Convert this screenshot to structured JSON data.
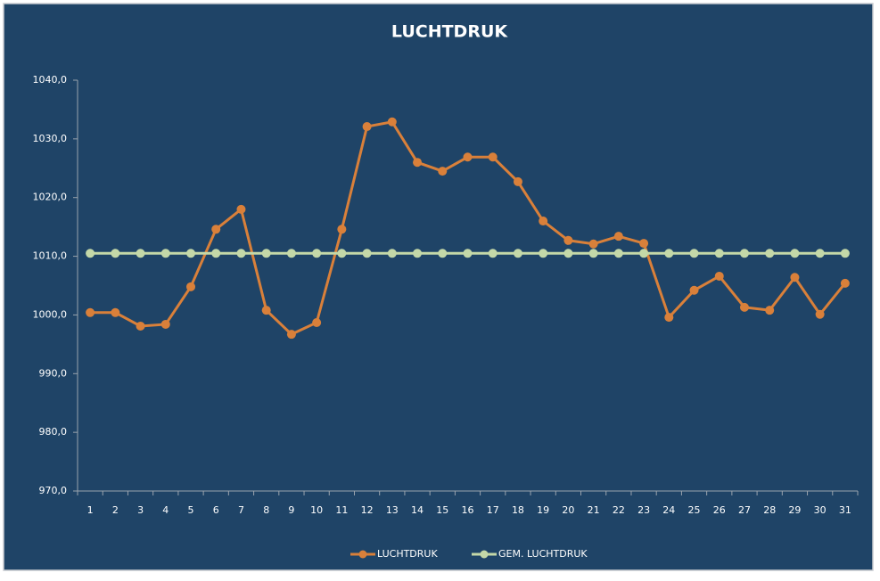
{
  "chart_data": {
    "type": "line",
    "title": "LUCHTDRUK",
    "categories": [
      "1",
      "2",
      "3",
      "4",
      "5",
      "6",
      "7",
      "8",
      "9",
      "10",
      "11",
      "12",
      "13",
      "14",
      "15",
      "16",
      "17",
      "18",
      "19",
      "20",
      "21",
      "22",
      "23",
      "24",
      "25",
      "26",
      "27",
      "28",
      "29",
      "30",
      "31"
    ],
    "series": [
      {
        "name": "LUCHTDRUK",
        "color": "#d9803a",
        "values": [
          1000.4,
          1000.4,
          998.1,
          998.4,
          1004.8,
          1014.6,
          1018.0,
          1000.8,
          996.7,
          998.7,
          1014.6,
          1032.1,
          1032.9,
          1026.0,
          1024.5,
          1026.9,
          1026.9,
          1022.7,
          1016.0,
          1012.7,
          1012.1,
          1013.4,
          1012.2,
          999.6,
          1004.2,
          1006.6,
          1001.3,
          1000.8,
          1006.4,
          1000.1,
          1005.4
        ]
      },
      {
        "name": "GEM. LUCHTDRUK",
        "color": "#c4d8a8",
        "values": [
          1010.5,
          1010.5,
          1010.5,
          1010.5,
          1010.5,
          1010.5,
          1010.5,
          1010.5,
          1010.5,
          1010.5,
          1010.5,
          1010.5,
          1010.5,
          1010.5,
          1010.5,
          1010.5,
          1010.5,
          1010.5,
          1010.5,
          1010.5,
          1010.5,
          1010.5,
          1010.5,
          1010.5,
          1010.5,
          1010.5,
          1010.5,
          1010.5,
          1010.5,
          1010.5,
          1010.5
        ]
      }
    ],
    "ylim": [
      970,
      1040
    ],
    "yticks": [
      {
        "value": 970,
        "label": "970,0"
      },
      {
        "value": 980,
        "label": "980,0"
      },
      {
        "value": 990,
        "label": "990,0"
      },
      {
        "value": 1000,
        "label": "1000,0"
      },
      {
        "value": 1010,
        "label": "1010,0"
      },
      {
        "value": 1020,
        "label": "1020,0"
      },
      {
        "value": 1030,
        "label": "1030,0"
      },
      {
        "value": 1040,
        "label": "1040,0"
      }
    ],
    "grid": false,
    "legend": "bottom"
  }
}
